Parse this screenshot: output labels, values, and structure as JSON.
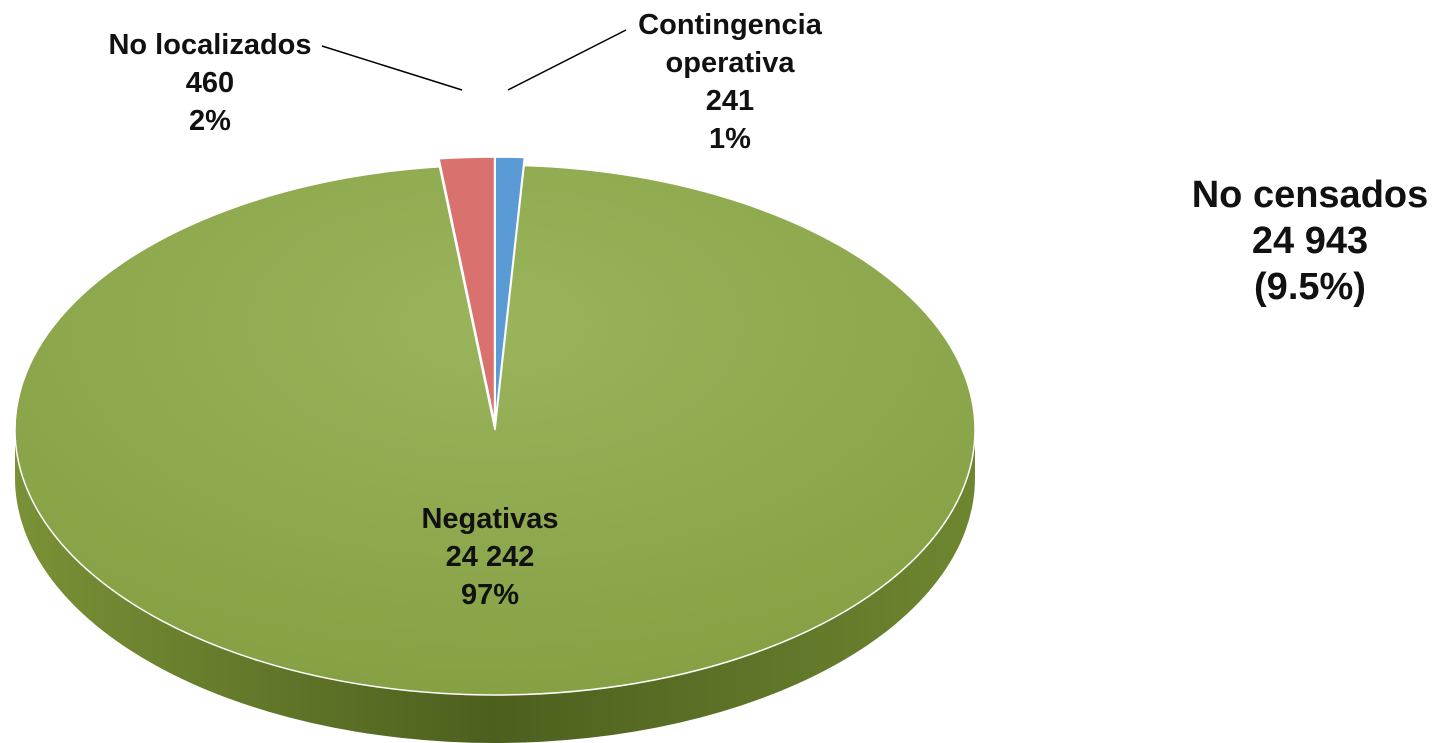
{
  "chart_data": {
    "type": "pie",
    "categories": [
      "Contingencia operativa",
      "Negativas",
      "No localizados"
    ],
    "values": [
      241,
      24242,
      460
    ],
    "value_labels": [
      "241",
      "24 242",
      "460"
    ],
    "percentages": [
      1,
      97,
      2
    ],
    "percentage_labels": [
      "1%",
      "97%",
      "2%"
    ],
    "colors": [
      "#5b9bd5",
      "#8ea84f",
      "#d9726f"
    ],
    "annotation": [
      "No censados",
      "24 943",
      "(9.5%)"
    ]
  }
}
